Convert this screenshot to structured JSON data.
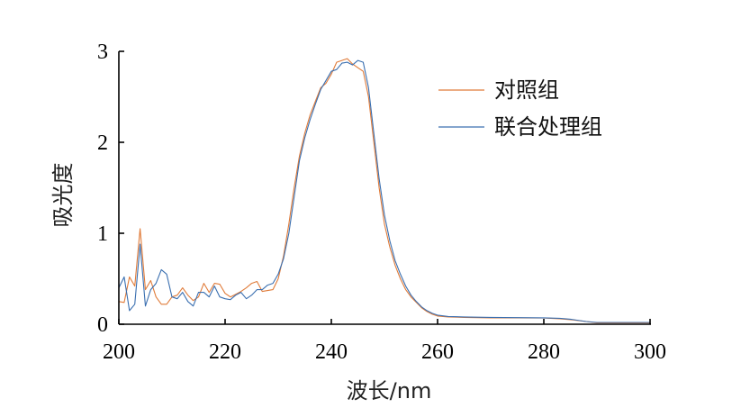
{
  "chart_data": {
    "type": "line",
    "title": "",
    "xlabel": "波长/nm",
    "ylabel": "吸光度",
    "xlim": [
      200,
      300
    ],
    "ylim": [
      0,
      3
    ],
    "xticks": [
      200,
      220,
      240,
      260,
      280,
      300
    ],
    "yticks": [
      0,
      1,
      2,
      3
    ],
    "grid": false,
    "legend_position": "top-right",
    "series": [
      {
        "name": "对照组",
        "color": "#e07b39",
        "x": [
          200,
          201,
          202,
          203,
          204,
          205,
          206,
          207,
          208,
          209,
          210,
          211,
          212,
          213,
          214,
          215,
          216,
          217,
          218,
          219,
          220,
          221,
          222,
          223,
          224,
          225,
          226,
          227,
          228,
          229,
          230,
          231,
          232,
          233,
          234,
          235,
          236,
          237,
          238,
          239,
          240,
          241,
          242,
          243,
          244,
          245,
          246,
          247,
          248,
          249,
          250,
          251,
          252,
          253,
          254,
          255,
          256,
          257,
          258,
          259,
          260,
          262,
          265,
          270,
          275,
          280,
          283,
          285,
          288,
          290,
          295,
          300
        ],
        "y": [
          0.25,
          0.24,
          0.52,
          0.42,
          1.05,
          0.38,
          0.48,
          0.3,
          0.22,
          0.22,
          0.3,
          0.32,
          0.4,
          0.32,
          0.26,
          0.3,
          0.45,
          0.35,
          0.45,
          0.44,
          0.34,
          0.3,
          0.33,
          0.36,
          0.4,
          0.45,
          0.47,
          0.36,
          0.37,
          0.38,
          0.5,
          0.75,
          1.1,
          1.5,
          1.85,
          2.1,
          2.3,
          2.45,
          2.6,
          2.65,
          2.75,
          2.88,
          2.9,
          2.92,
          2.86,
          2.82,
          2.78,
          2.5,
          2.0,
          1.5,
          1.1,
          0.85,
          0.65,
          0.5,
          0.38,
          0.3,
          0.24,
          0.18,
          0.14,
          0.11,
          0.09,
          0.08,
          0.075,
          0.07,
          0.07,
          0.068,
          0.06,
          0.05,
          0.03,
          0.015,
          0.015,
          0.015
        ]
      },
      {
        "name": "联合处理组",
        "color": "#3a6fb0",
        "x": [
          200,
          201,
          202,
          203,
          204,
          205,
          206,
          207,
          208,
          209,
          210,
          211,
          212,
          213,
          214,
          215,
          216,
          217,
          218,
          219,
          220,
          221,
          222,
          223,
          224,
          225,
          226,
          227,
          228,
          229,
          230,
          231,
          232,
          233,
          234,
          235,
          236,
          237,
          238,
          239,
          240,
          241,
          242,
          243,
          244,
          245,
          246,
          247,
          248,
          249,
          250,
          251,
          252,
          253,
          254,
          255,
          256,
          257,
          258,
          259,
          260,
          262,
          265,
          270,
          275,
          280,
          283,
          285,
          288,
          290,
          295,
          300
        ],
        "y": [
          0.4,
          0.52,
          0.15,
          0.22,
          0.88,
          0.2,
          0.38,
          0.45,
          0.6,
          0.55,
          0.3,
          0.28,
          0.35,
          0.25,
          0.2,
          0.35,
          0.35,
          0.3,
          0.42,
          0.3,
          0.28,
          0.27,
          0.32,
          0.35,
          0.28,
          0.32,
          0.38,
          0.38,
          0.43,
          0.45,
          0.55,
          0.72,
          1.0,
          1.4,
          1.8,
          2.05,
          2.25,
          2.42,
          2.58,
          2.68,
          2.78,
          2.8,
          2.87,
          2.88,
          2.85,
          2.9,
          2.88,
          2.6,
          2.1,
          1.6,
          1.2,
          0.92,
          0.7,
          0.55,
          0.42,
          0.32,
          0.25,
          0.19,
          0.15,
          0.12,
          0.1,
          0.085,
          0.08,
          0.075,
          0.072,
          0.07,
          0.065,
          0.055,
          0.03,
          0.02,
          0.02,
          0.02
        ]
      }
    ]
  }
}
